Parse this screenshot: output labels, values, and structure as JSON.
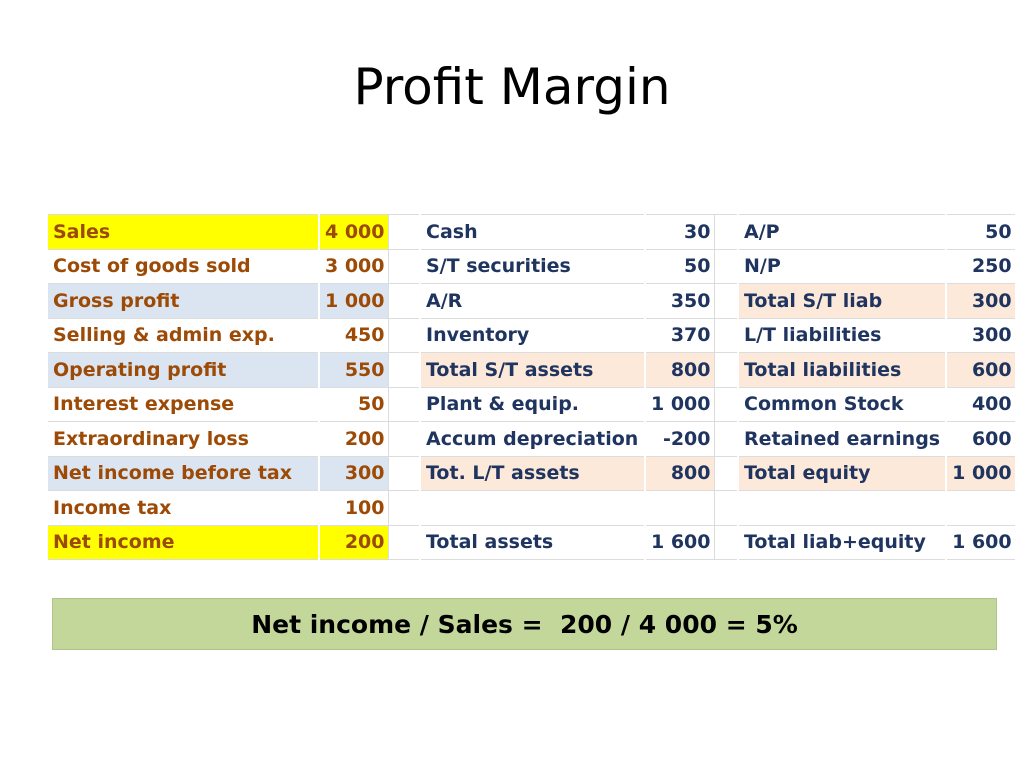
{
  "title": "Profit Margin",
  "income_statement": [
    {
      "label": "Sales",
      "value": "4 000"
    },
    {
      "label": "Cost of goods sold",
      "value": "3 000"
    },
    {
      "label": "Gross profit",
      "value": "1 000"
    },
    {
      "label": "Selling & admin exp.",
      "value": "450"
    },
    {
      "label": "Operating profit",
      "value": "550"
    },
    {
      "label": "Interest expense",
      "value": "50"
    },
    {
      "label": "Extraordinary loss",
      "value": "200"
    },
    {
      "label": "Net income before tax",
      "value": "300"
    },
    {
      "label": "Income tax",
      "value": "100"
    },
    {
      "label": "Net income",
      "value": "200"
    }
  ],
  "assets": [
    {
      "label": "Cash",
      "value": "30"
    },
    {
      "label": "S/T securities",
      "value": "50"
    },
    {
      "label": "A/R",
      "value": "350"
    },
    {
      "label": "Inventory",
      "value": "370"
    },
    {
      "label": "Total S/T assets",
      "value": "800"
    },
    {
      "label": "Plant & equip.",
      "value": "1 000"
    },
    {
      "label": "Accum depreciation",
      "value": "-200"
    },
    {
      "label": "Tot. L/T assets",
      "value": "800"
    },
    {
      "label": "",
      "value": ""
    },
    {
      "label": "Total assets",
      "value": "1 600"
    }
  ],
  "liabilities_equity": [
    {
      "label": "A/P",
      "value": "50"
    },
    {
      "label": "N/P",
      "value": "250"
    },
    {
      "label": "Total S/T liab",
      "value": "300"
    },
    {
      "label": "L/T liabilities",
      "value": "300"
    },
    {
      "label": "Total liabilities",
      "value": "600"
    },
    {
      "label": "Common Stock",
      "value": "400"
    },
    {
      "label": "Retained earnings",
      "value": "600"
    },
    {
      "label": "Total equity",
      "value": "1 000"
    },
    {
      "label": "",
      "value": ""
    },
    {
      "label": "Total liab+equity",
      "value": "1 600"
    }
  ],
  "formula": "Net income / Sales =  200 / 4 000 = 5%",
  "colors": {
    "highlight_yellow": "#ffff00",
    "highlight_blue": "#dbe5f1",
    "highlight_peach": "#fde9d9",
    "formula_bg": "#c4d79b",
    "income_text": "#9c4a06",
    "balance_text": "#1f3560"
  }
}
